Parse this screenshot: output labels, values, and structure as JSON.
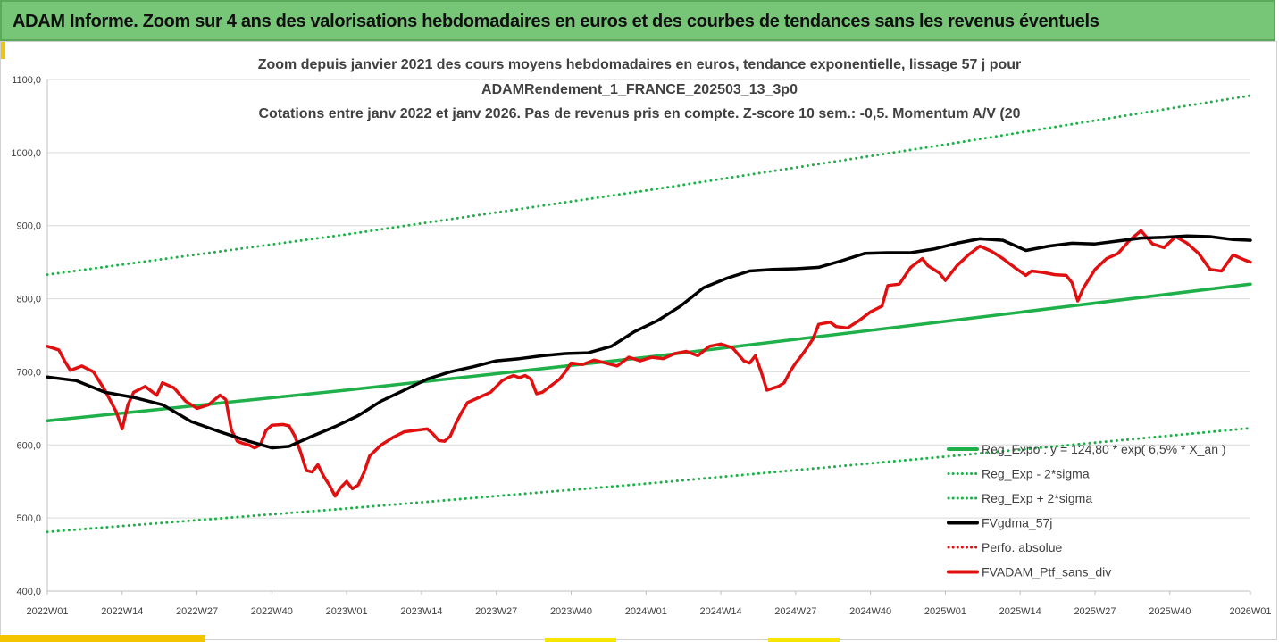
{
  "header": {
    "title": "ADAM Informe. Zoom sur 4 ans des valorisations hebdomadaires en euros et des courbes de tendances sans les revenus éventuels"
  },
  "chart_data": {
    "type": "line",
    "title_lines": [
      "Zoom depuis janvier 2021 des cours moyens hebdomadaires  en euros, tendance exponentielle, lissage 57 j pour",
      "ADAMRendement_1_FRANCE_202503_13_3p0",
      "Cotations entre janv 2022 et janv 2026. Pas de revenus pris en compte. Z-score 10 sem.: -0,5. Momentum A/V (20"
    ],
    "ylim": [
      400,
      1100
    ],
    "y_ticks": [
      "400,0",
      "500,0",
      "600,0",
      "700,0",
      "800,0",
      "900,0",
      "1000,0",
      "1100,0"
    ],
    "y_tick_values": [
      400,
      500,
      600,
      700,
      800,
      900,
      1000,
      1100
    ],
    "x_range_weeks": [
      0,
      209
    ],
    "x_ticks": [
      "2022W01",
      "2022W14",
      "2022W27",
      "2022W40",
      "2023W01",
      "2023W14",
      "2023W27",
      "2023W40",
      "2024W01",
      "2024W14",
      "2024W27",
      "2024W40",
      "2025W01",
      "2025W14",
      "2025W27",
      "2025W40",
      "2026W01"
    ],
    "x_tick_weeks": [
      0,
      13,
      26,
      39,
      52,
      65,
      78,
      91,
      104,
      117,
      130,
      143,
      156,
      169,
      182,
      195,
      209
    ],
    "legend_position": "bottom-right",
    "series": [
      {
        "name": "Reg_Expo : y = 124,80 *  exp( 6,5% *  X_an )",
        "style": "solid",
        "color": "#1fb04a",
        "points": [
          [
            0,
            633
          ],
          [
            52,
            675
          ],
          [
            104,
            720
          ],
          [
            156,
            769
          ],
          [
            209,
            820
          ]
        ]
      },
      {
        "name": "Reg_Exp - 2*sigma",
        "style": "dotted",
        "color": "#1fb04a",
        "points": [
          [
            0,
            481
          ],
          [
            52,
            513
          ],
          [
            104,
            547
          ],
          [
            156,
            584
          ],
          [
            209,
            623
          ]
        ]
      },
      {
        "name": "Reg_Exp + 2*sigma",
        "style": "dotted",
        "color": "#1fb04a",
        "points": [
          [
            0,
            833
          ],
          [
            52,
            888
          ],
          [
            104,
            948
          ],
          [
            156,
            1011
          ],
          [
            209,
            1078
          ]
        ]
      },
      {
        "name": "FVgdma_57j",
        "style": "solid",
        "color": "#000000",
        "points": [
          [
            0,
            693
          ],
          [
            5,
            688
          ],
          [
            10,
            672
          ],
          [
            15,
            665
          ],
          [
            20,
            655
          ],
          [
            25,
            632
          ],
          [
            30,
            618
          ],
          [
            35,
            605
          ],
          [
            39,
            596
          ],
          [
            42,
            598
          ],
          [
            46,
            612
          ],
          [
            50,
            625
          ],
          [
            54,
            640
          ],
          [
            58,
            660
          ],
          [
            62,
            675
          ],
          [
            66,
            690
          ],
          [
            70,
            700
          ],
          [
            74,
            707
          ],
          [
            78,
            715
          ],
          [
            82,
            718
          ],
          [
            86,
            722
          ],
          [
            90,
            725
          ],
          [
            94,
            726
          ],
          [
            98,
            735
          ],
          [
            102,
            755
          ],
          [
            106,
            770
          ],
          [
            110,
            790
          ],
          [
            114,
            815
          ],
          [
            118,
            828
          ],
          [
            122,
            838
          ],
          [
            126,
            840
          ],
          [
            130,
            841
          ],
          [
            134,
            843
          ],
          [
            138,
            852
          ],
          [
            142,
            862
          ],
          [
            146,
            863
          ],
          [
            150,
            863
          ],
          [
            154,
            868
          ],
          [
            158,
            876
          ],
          [
            162,
            882
          ],
          [
            166,
            880
          ],
          [
            170,
            866
          ],
          [
            174,
            872
          ],
          [
            178,
            876
          ],
          [
            182,
            875
          ],
          [
            186,
            879
          ],
          [
            190,
            883
          ],
          [
            194,
            884
          ],
          [
            198,
            886
          ],
          [
            202,
            885
          ],
          [
            206,
            881
          ],
          [
            209,
            880
          ]
        ]
      },
      {
        "name": "Perfo. absolue",
        "style": "dotted",
        "color": "#e01010",
        "points": []
      },
      {
        "name": "FVADAM_Ptf_sans_div",
        "style": "solid",
        "color": "#e01010",
        "points": [
          [
            0,
            735
          ],
          [
            2,
            730
          ],
          [
            3,
            715
          ],
          [
            4,
            702
          ],
          [
            6,
            708
          ],
          [
            8,
            700
          ],
          [
            10,
            675
          ],
          [
            12,
            645
          ],
          [
            13,
            622
          ],
          [
            14,
            655
          ],
          [
            15,
            672
          ],
          [
            17,
            680
          ],
          [
            19,
            668
          ],
          [
            20,
            685
          ],
          [
            22,
            678
          ],
          [
            24,
            660
          ],
          [
            26,
            650
          ],
          [
            28,
            655
          ],
          [
            30,
            668
          ],
          [
            31,
            662
          ],
          [
            32,
            620
          ],
          [
            33,
            605
          ],
          [
            34,
            602
          ],
          [
            35,
            600
          ],
          [
            36,
            596
          ],
          [
            37,
            600
          ],
          [
            38,
            620
          ],
          [
            39,
            627
          ],
          [
            41,
            628
          ],
          [
            42,
            626
          ],
          [
            43,
            612
          ],
          [
            44,
            590
          ],
          [
            45,
            565
          ],
          [
            46,
            563
          ],
          [
            47,
            573
          ],
          [
            48,
            557
          ],
          [
            49,
            545
          ],
          [
            50,
            530
          ],
          [
            51,
            542
          ],
          [
            52,
            550
          ],
          [
            53,
            540
          ],
          [
            54,
            545
          ],
          [
            55,
            562
          ],
          [
            56,
            585
          ],
          [
            58,
            600
          ],
          [
            60,
            610
          ],
          [
            62,
            618
          ],
          [
            64,
            620
          ],
          [
            66,
            622
          ],
          [
            67,
            615
          ],
          [
            68,
            606
          ],
          [
            69,
            605
          ],
          [
            70,
            612
          ],
          [
            71,
            630
          ],
          [
            72,
            645
          ],
          [
            73,
            658
          ],
          [
            75,
            665
          ],
          [
            77,
            672
          ],
          [
            79,
            688
          ],
          [
            80,
            692
          ],
          [
            81,
            695
          ],
          [
            82,
            692
          ],
          [
            83,
            695
          ],
          [
            84,
            690
          ],
          [
            85,
            670
          ],
          [
            86,
            672
          ],
          [
            87,
            678
          ],
          [
            89,
            690
          ],
          [
            90,
            700
          ],
          [
            91,
            712
          ],
          [
            93,
            710
          ],
          [
            95,
            716
          ],
          [
            97,
            712
          ],
          [
            99,
            708
          ],
          [
            101,
            720
          ],
          [
            103,
            715
          ],
          [
            105,
            720
          ],
          [
            107,
            718
          ],
          [
            109,
            725
          ],
          [
            111,
            728
          ],
          [
            113,
            722
          ],
          [
            115,
            735
          ],
          [
            117,
            738
          ],
          [
            119,
            733
          ],
          [
            121,
            715
          ],
          [
            122,
            712
          ],
          [
            123,
            722
          ],
          [
            124,
            700
          ],
          [
            125,
            675
          ],
          [
            127,
            680
          ],
          [
            128,
            685
          ],
          [
            129,
            700
          ],
          [
            130,
            712
          ],
          [
            131,
            722
          ],
          [
            132,
            733
          ],
          [
            133,
            745
          ],
          [
            134,
            765
          ],
          [
            136,
            768
          ],
          [
            137,
            762
          ],
          [
            139,
            760
          ],
          [
            141,
            770
          ],
          [
            143,
            782
          ],
          [
            145,
            790
          ],
          [
            146,
            818
          ],
          [
            148,
            820
          ],
          [
            150,
            843
          ],
          [
            152,
            855
          ],
          [
            153,
            845
          ],
          [
            155,
            835
          ],
          [
            156,
            825
          ],
          [
            158,
            845
          ],
          [
            160,
            860
          ],
          [
            162,
            872
          ],
          [
            164,
            865
          ],
          [
            166,
            855
          ],
          [
            168,
            843
          ],
          [
            170,
            832
          ],
          [
            171,
            838
          ],
          [
            173,
            836
          ],
          [
            175,
            833
          ],
          [
            177,
            832
          ],
          [
            178,
            822
          ],
          [
            179,
            797
          ],
          [
            180,
            815
          ],
          [
            182,
            840
          ],
          [
            184,
            855
          ],
          [
            186,
            862
          ],
          [
            188,
            880
          ],
          [
            190,
            893
          ],
          [
            192,
            875
          ],
          [
            194,
            870
          ],
          [
            196,
            885
          ],
          [
            198,
            876
          ],
          [
            200,
            862
          ],
          [
            202,
            840
          ],
          [
            204,
            838
          ],
          [
            206,
            860
          ],
          [
            208,
            853
          ],
          [
            209,
            850
          ]
        ]
      }
    ]
  }
}
